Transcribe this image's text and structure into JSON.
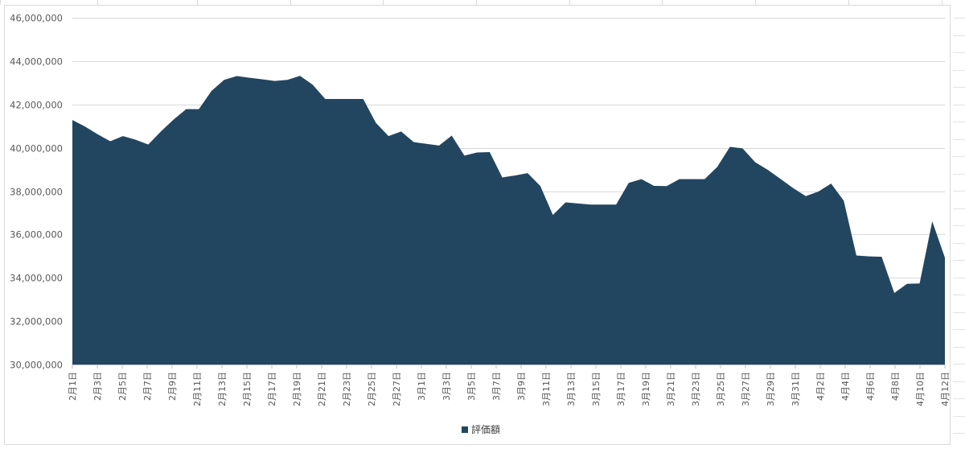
{
  "chart_data": {
    "type": "area",
    "title": "",
    "xlabel": "",
    "ylabel": "",
    "ylim": [
      30000000,
      46000000
    ],
    "y_ticks": [
      30000000,
      32000000,
      34000000,
      36000000,
      38000000,
      40000000,
      42000000,
      44000000,
      46000000
    ],
    "y_tick_labels": [
      "30,000,000",
      "32,000,000",
      "34,000,000",
      "36,000,000",
      "38,000,000",
      "40,000,000",
      "42,000,000",
      "44,000,000",
      "46,000,000"
    ],
    "x_tick_labels": [
      "2月1日",
      "2月3日",
      "2月5日",
      "2月7日",
      "2月9日",
      "2月11日",
      "2月13日",
      "2月15日",
      "2月17日",
      "2月19日",
      "2月21日",
      "2月23日",
      "2月25日",
      "2月27日",
      "3月1日",
      "3月3日",
      "3月5日",
      "3月7日",
      "3月9日",
      "3月11日",
      "3月13日",
      "3月15日",
      "3月17日",
      "3月19日",
      "3月21日",
      "3月23日",
      "3月25日",
      "3月27日",
      "3月29日",
      "3月31日",
      "4月2日",
      "4月4日",
      "4月6日",
      "4月8日",
      "4月10日",
      "4月12日"
    ],
    "grid": true,
    "legend_position": "bottom",
    "series": [
      {
        "name": "評価額",
        "color": "#234660",
        "values": [
          41280000,
          40980000,
          40620000,
          40300000,
          40540000,
          40370000,
          40150000,
          40750000,
          41300000,
          41780000,
          41780000,
          42620000,
          43130000,
          43310000,
          43230000,
          43160000,
          43080000,
          43130000,
          43320000,
          42910000,
          42250000,
          42250000,
          42250000,
          42250000,
          41150000,
          40540000,
          40750000,
          40260000,
          40180000,
          40100000,
          40560000,
          39640000,
          39780000,
          39800000,
          38630000,
          38720000,
          38830000,
          38240000,
          36900000,
          37480000,
          37430000,
          37380000,
          37380000,
          37380000,
          38380000,
          38550000,
          38240000,
          38230000,
          38550000,
          38550000,
          38550000,
          39120000,
          40040000,
          39970000,
          39330000,
          38980000,
          38560000,
          38140000,
          37770000,
          37980000,
          38350000,
          37560000,
          35030000,
          34990000,
          34970000,
          33300000,
          33720000,
          33740000,
          36610000,
          34930000
        ]
      }
    ]
  }
}
